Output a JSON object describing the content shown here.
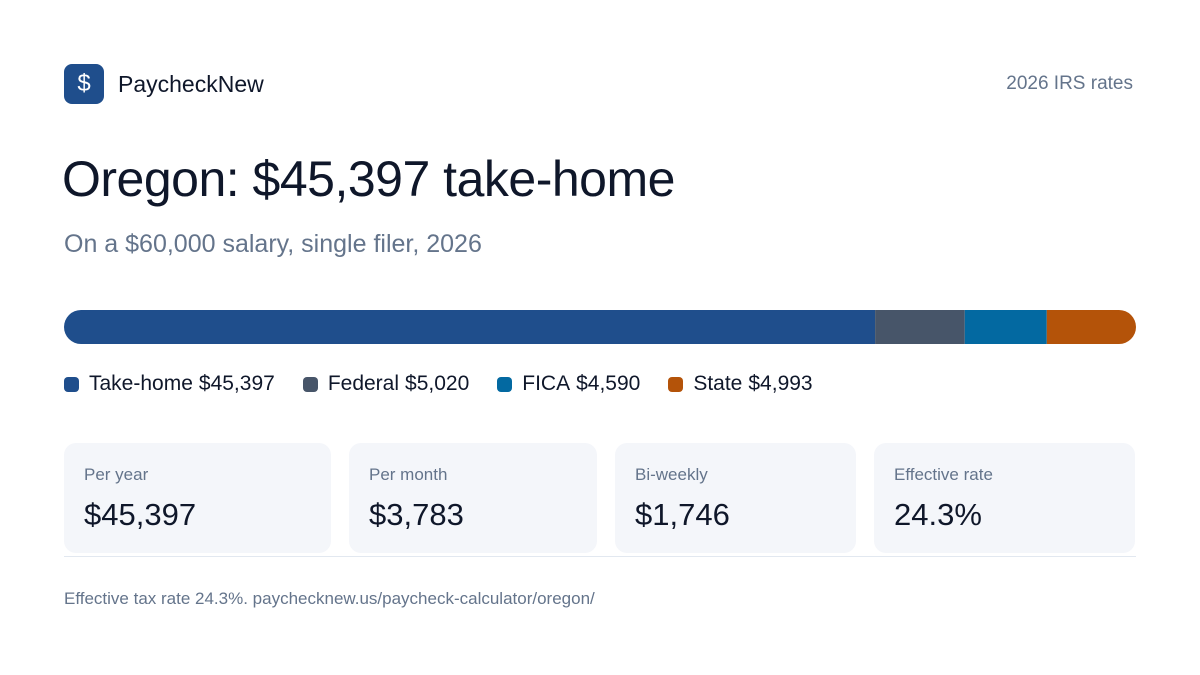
{
  "header": {
    "brand": "PaycheckNew",
    "icon": "$",
    "rates_note": "2026 IRS rates"
  },
  "title": "Oregon: $45,397 take-home",
  "subtitle": "On a $60,000 salary, single filer, 2026",
  "breakdown": {
    "segments": [
      {
        "name": "Take-home",
        "value": 45397,
        "value_label": "$45,397",
        "color": "#1f4e8c"
      },
      {
        "name": "Federal",
        "value": 5020,
        "value_label": "$5,020",
        "color": "#475569"
      },
      {
        "name": "FICA",
        "value": 4590,
        "value_label": "$4,590",
        "color": "#0369a1"
      },
      {
        "name": "State",
        "value": 4993,
        "value_label": "$4,993",
        "color": "#b45309"
      }
    ]
  },
  "stats": [
    {
      "label": "Per year",
      "value": "$45,397"
    },
    {
      "label": "Per month",
      "value": "$3,783"
    },
    {
      "label": "Bi-weekly",
      "value": "$1,746"
    },
    {
      "label": "Effective rate",
      "value": "24.3%"
    }
  ],
  "footer": "Effective tax rate 24.3%. paychecknew.us/paycheck-calculator/oregon/"
}
